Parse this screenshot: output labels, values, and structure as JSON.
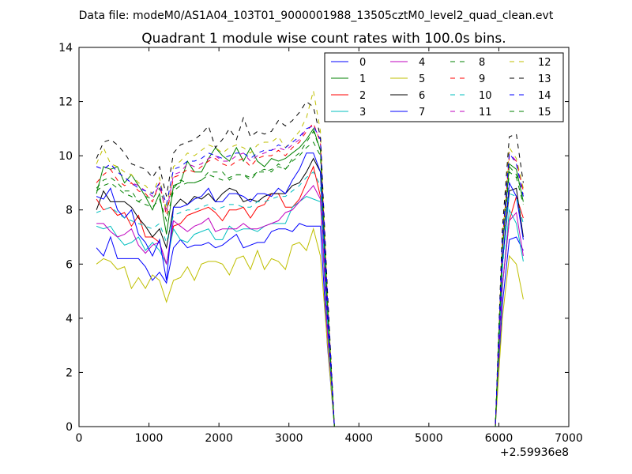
{
  "header": {
    "datafile": "Data file: modeM0/AS1A04_103T01_9000001988_13505cztM0_level2_quad_clean.evt"
  },
  "chart_data": {
    "type": "line",
    "title": "Quadrant 1 module wise count rates with 100.0s bins.",
    "xlabel": "",
    "ylabel": "",
    "xlim": [
      0,
      7000
    ],
    "ylim": [
      0,
      14
    ],
    "x_offset_label": "+2.59936e8",
    "xticks": [
      0,
      1000,
      2000,
      3000,
      4000,
      5000,
      6000,
      7000
    ],
    "yticks": [
      0,
      2,
      4,
      6,
      8,
      10,
      12,
      14
    ],
    "xtick_labels": [
      "0",
      "1000",
      "2000",
      "3000",
      "4000",
      "5000",
      "6000",
      "7000"
    ],
    "ytick_labels": [
      "0",
      "2",
      "4",
      "6",
      "8",
      "10",
      "12",
      "14"
    ],
    "grid": false,
    "legend_position": "top-right",
    "legend_columns": 4,
    "x": [
      250,
      350,
      450,
      550,
      650,
      750,
      850,
      950,
      1050,
      1150,
      1250,
      1350,
      1450,
      1550,
      1650,
      1750,
      1850,
      1950,
      2050,
      2150,
      2250,
      2350,
      2450,
      2550,
      2650,
      2750,
      2850,
      2950,
      3050,
      3150,
      3250,
      3350,
      3450,
      3550,
      3650,
      3750,
      3850,
      3950,
      4050,
      4150,
      4250,
      4350,
      4450,
      4550,
      4650,
      4750,
      4850,
      4950,
      5050,
      5150,
      5250,
      5350,
      5450,
      5550,
      5650,
      5750,
      5850,
      5950,
      6050,
      6150,
      6250,
      6350
    ],
    "series": [
      {
        "name": "0",
        "color": "#0000ff",
        "dash": "solid",
        "values": [
          6.6,
          6.3,
          7.0,
          6.2,
          6.2,
          6.2,
          6.2,
          5.9,
          5.4,
          5.7,
          5.3,
          6.6,
          6.9,
          6.6,
          6.7,
          6.7,
          6.8,
          6.6,
          6.7,
          6.9,
          7.1,
          6.6,
          6.7,
          6.8,
          6.8,
          7.2,
          7.3,
          7.3,
          7.2,
          7.5,
          7.4,
          7.4,
          7.4,
          3.0,
          0,
          0,
          0,
          0,
          0,
          0,
          0,
          0,
          0,
          0,
          0,
          0,
          0,
          0,
          0,
          0,
          0,
          0,
          0,
          0,
          0,
          0,
          0,
          0,
          4.5,
          6.9,
          7.0,
          6.5
        ]
      },
      {
        "name": "1",
        "color": "#008000",
        "dash": "solid",
        "values": [
          8.6,
          9.6,
          9.5,
          9.6,
          9.0,
          9.3,
          8.9,
          8.5,
          8.0,
          8.6,
          7.1,
          8.9,
          9.0,
          9.8,
          9.4,
          9.4,
          9.9,
          10.3,
          10.0,
          9.8,
          10.3,
          9.8,
          10.3,
          9.8,
          9.6,
          9.9,
          9.8,
          9.9,
          10.1,
          10.3,
          10.6,
          11.0,
          10.2,
          4.5,
          0,
          0,
          0,
          0,
          0,
          0,
          0,
          0,
          0,
          0,
          0,
          0,
          0,
          0,
          0,
          0,
          0,
          0,
          0,
          0,
          0,
          0,
          0,
          0,
          6.5,
          9.7,
          9.5,
          8.3
        ]
      },
      {
        "name": "2",
        "color": "#ff0000",
        "dash": "solid",
        "values": [
          8.4,
          8.0,
          8.1,
          7.8,
          7.9,
          7.4,
          7.8,
          7.0,
          7.0,
          6.8,
          6.0,
          7.4,
          7.5,
          7.8,
          7.9,
          8.0,
          8.1,
          7.9,
          7.6,
          8.0,
          8.0,
          8.1,
          7.7,
          8.1,
          8.2,
          8.6,
          8.6,
          8.1,
          8.1,
          8.4,
          9.0,
          9.6,
          8.5,
          3.6,
          0,
          0,
          0,
          0,
          0,
          0,
          0,
          0,
          0,
          0,
          0,
          0,
          0,
          0,
          0,
          0,
          0,
          0,
          0,
          0,
          0,
          0,
          0,
          0,
          5.2,
          7.6,
          8.5,
          7.7
        ]
      },
      {
        "name": "3",
        "color": "#00bfbf",
        "dash": "solid",
        "values": [
          7.4,
          7.3,
          7.4,
          7.0,
          6.7,
          6.8,
          7.0,
          6.5,
          6.8,
          6.5,
          6.0,
          7.3,
          6.9,
          6.8,
          7.1,
          7.2,
          7.3,
          6.9,
          6.9,
          7.4,
          7.2,
          7.3,
          7.3,
          7.2,
          7.4,
          7.5,
          7.5,
          7.5,
          8.1,
          8.3,
          8.5,
          8.4,
          8.3,
          3.5,
          0,
          0,
          0,
          0,
          0,
          0,
          0,
          0,
          0,
          0,
          0,
          0,
          0,
          0,
          0,
          0,
          0,
          0,
          0,
          0,
          0,
          0,
          0,
          0,
          5.1,
          8.0,
          7.5,
          6.1
        ]
      },
      {
        "name": "4",
        "color": "#bf00bf",
        "dash": "solid",
        "values": [
          7.5,
          7.5,
          7.2,
          7.0,
          7.1,
          7.3,
          6.7,
          6.4,
          6.7,
          6.8,
          6.0,
          7.6,
          7.4,
          7.2,
          7.4,
          7.5,
          7.7,
          7.2,
          7.3,
          7.3,
          7.3,
          7.5,
          7.3,
          7.3,
          7.4,
          7.5,
          7.6,
          7.9,
          8.0,
          8.3,
          8.6,
          8.9,
          8.4,
          3.5,
          0,
          0,
          0,
          0,
          0,
          0,
          0,
          0,
          0,
          0,
          0,
          0,
          0,
          0,
          0,
          0,
          0,
          0,
          0,
          0,
          0,
          0,
          0,
          0,
          5.2,
          7.6,
          7.9,
          6.3
        ]
      },
      {
        "name": "5",
        "color": "#bfbf00",
        "dash": "solid",
        "values": [
          6.0,
          6.2,
          6.1,
          5.8,
          5.9,
          5.1,
          5.5,
          5.1,
          5.6,
          5.4,
          4.6,
          5.4,
          5.5,
          5.9,
          5.4,
          6.0,
          6.1,
          6.1,
          6.0,
          5.6,
          6.2,
          6.3,
          5.8,
          6.5,
          5.8,
          6.2,
          6.1,
          5.8,
          6.7,
          6.8,
          6.5,
          7.3,
          6.3,
          3.1,
          0,
          0,
          0,
          0,
          0,
          0,
          0,
          0,
          0,
          0,
          0,
          0,
          0,
          0,
          0,
          0,
          0,
          0,
          0,
          0,
          0,
          0,
          0,
          0,
          4.0,
          6.3,
          6.0,
          4.7
        ]
      },
      {
        "name": "6",
        "color": "#000000",
        "dash": "solid",
        "values": [
          8.0,
          8.7,
          8.3,
          8.3,
          8.3,
          8.1,
          7.7,
          7.4,
          7.0,
          7.3,
          6.6,
          8.1,
          8.4,
          8.2,
          8.5,
          8.4,
          8.6,
          8.3,
          8.6,
          8.8,
          8.7,
          8.3,
          8.4,
          8.3,
          8.5,
          8.6,
          8.6,
          8.6,
          8.9,
          9.0,
          9.4,
          9.9,
          9.4,
          4.1,
          0,
          0,
          0,
          0,
          0,
          0,
          0,
          0,
          0,
          0,
          0,
          0,
          0,
          0,
          0,
          0,
          0,
          0,
          0,
          0,
          0,
          0,
          0,
          0,
          6.0,
          8.7,
          8.8,
          7.0
        ]
      },
      {
        "name": "7",
        "color": "#0000ff",
        "dash": "solid",
        "values": [
          8.5,
          8.4,
          8.8,
          8.0,
          7.7,
          8.0,
          7.1,
          6.8,
          6.3,
          6.9,
          5.4,
          8.1,
          8.1,
          8.2,
          8.4,
          8.5,
          8.8,
          8.3,
          8.3,
          8.6,
          8.6,
          8.5,
          8.3,
          8.6,
          8.6,
          8.5,
          8.8,
          8.6,
          9.1,
          9.5,
          10.1,
          10.1,
          9.4,
          4.0,
          0,
          0,
          0,
          0,
          0,
          0,
          0,
          0,
          0,
          0,
          0,
          0,
          0,
          0,
          0,
          0,
          0,
          0,
          0,
          0,
          0,
          0,
          0,
          0,
          6.0,
          9.0,
          8.5,
          6.9
        ]
      },
      {
        "name": "8",
        "color": "#008000",
        "dash": "dashed",
        "values": [
          8.8,
          9.1,
          9.2,
          9.0,
          8.7,
          8.7,
          8.3,
          8.5,
          8.4,
          8.8,
          8.0,
          8.8,
          9.1,
          9.0,
          9.0,
          9.1,
          9.4,
          9.4,
          9.4,
          9.1,
          9.3,
          9.3,
          9.2,
          9.4,
          9.5,
          9.4,
          9.7,
          9.5,
          9.9,
          10.1,
          10.5,
          10.9,
          10.2,
          4.6,
          0,
          0,
          0,
          0,
          0,
          0,
          0,
          0,
          0,
          0,
          0,
          0,
          0,
          0,
          0,
          0,
          0,
          0,
          0,
          0,
          0,
          0,
          0,
          0,
          6.6,
          9.6,
          9.3,
          8.5
        ]
      },
      {
        "name": "9",
        "color": "#ff0000",
        "dash": "dashed",
        "values": [
          9.0,
          9.3,
          9.5,
          9.1,
          8.9,
          9.0,
          8.7,
          8.6,
          8.3,
          9.0,
          7.8,
          9.2,
          9.3,
          9.5,
          9.4,
          9.6,
          9.8,
          9.9,
          9.7,
          9.6,
          9.8,
          9.9,
          9.6,
          9.9,
          10.0,
          10.0,
          10.2,
          10.0,
          10.3,
          10.5,
          10.9,
          11.2,
          10.5,
          4.8,
          0,
          0,
          0,
          0,
          0,
          0,
          0,
          0,
          0,
          0,
          0,
          0,
          0,
          0,
          0,
          0,
          0,
          0,
          0,
          0,
          0,
          0,
          0,
          0,
          6.8,
          10.0,
          9.8,
          8.7
        ]
      },
      {
        "name": "10",
        "color": "#00bfbf",
        "dash": "dashed",
        "values": [
          7.9,
          8.0,
          8.1,
          7.9,
          7.7,
          7.6,
          7.5,
          7.4,
          7.3,
          7.5,
          6.8,
          7.8,
          7.9,
          8.0,
          8.0,
          8.1,
          8.2,
          8.0,
          8.1,
          8.2,
          8.2,
          8.1,
          8.1,
          8.3,
          8.3,
          8.4,
          8.5,
          8.5,
          8.7,
          8.9,
          9.2,
          9.4,
          8.9,
          4.0,
          0,
          0,
          0,
          0,
          0,
          0,
          0,
          0,
          0,
          0,
          0,
          0,
          0,
          0,
          0,
          0,
          0,
          0,
          0,
          0,
          0,
          0,
          0,
          0,
          5.8,
          8.6,
          8.5,
          7.5
        ]
      },
      {
        "name": "11",
        "color": "#bf00bf",
        "dash": "dashed",
        "values": [
          9.6,
          9.5,
          9.7,
          9.4,
          9.2,
          9.0,
          8.9,
          8.7,
          8.5,
          8.9,
          7.9,
          9.3,
          9.4,
          9.7,
          9.6,
          9.7,
          9.9,
          10.0,
          9.8,
          9.8,
          10.0,
          10.1,
          9.8,
          10.0,
          10.1,
          10.2,
          10.3,
          10.2,
          10.4,
          10.6,
          11.0,
          11.1,
          10.6,
          4.8,
          0,
          0,
          0,
          0,
          0,
          0,
          0,
          0,
          0,
          0,
          0,
          0,
          0,
          0,
          0,
          0,
          0,
          0,
          0,
          0,
          0,
          0,
          0,
          0,
          6.9,
          10.1,
          9.8,
          8.6
        ]
      },
      {
        "name": "12",
        "color": "#bfbf00",
        "dash": "dashed",
        "values": [
          9.7,
          10.3,
          9.7,
          9.6,
          9.4,
          9.3,
          9.0,
          8.9,
          8.6,
          9.2,
          8.0,
          9.6,
          9.8,
          10.1,
          10.0,
          10.2,
          10.4,
          10.3,
          10.1,
          10.3,
          10.4,
          10.3,
          10.1,
          10.4,
          10.5,
          10.5,
          10.7,
          10.3,
          10.6,
          10.9,
          11.4,
          12.4,
          10.9,
          5.0,
          0,
          0,
          0,
          0,
          0,
          0,
          0,
          0,
          0,
          0,
          0,
          0,
          0,
          0,
          0,
          0,
          0,
          0,
          0,
          0,
          0,
          0,
          0,
          0,
          7.1,
          10.3,
          9.9,
          8.8
        ]
      },
      {
        "name": "13",
        "color": "#000000",
        "dash": "dashed",
        "values": [
          9.9,
          10.5,
          10.6,
          10.4,
          10.1,
          9.7,
          9.6,
          9.5,
          9.2,
          9.6,
          8.5,
          10.1,
          10.4,
          10.5,
          10.6,
          10.8,
          11.1,
          10.3,
          10.6,
          11.0,
          10.6,
          11.4,
          10.7,
          10.9,
          10.8,
          10.9,
          11.3,
          11.1,
          11.3,
          11.6,
          12.0,
          11.8,
          10.7,
          5.1,
          0,
          0,
          0,
          0,
          0,
          0,
          0,
          0,
          0,
          0,
          0,
          0,
          0,
          0,
          0,
          0,
          0,
          0,
          0,
          0,
          0,
          0,
          0,
          0,
          7.3,
          10.7,
          10.8,
          9.0
        ]
      },
      {
        "name": "14",
        "color": "#0000ff",
        "dash": "dashed",
        "values": [
          9.6,
          9.5,
          9.7,
          9.4,
          9.2,
          9.0,
          8.8,
          8.7,
          8.6,
          9.0,
          8.2,
          9.5,
          9.6,
          9.8,
          9.8,
          9.9,
          10.1,
          10.0,
          9.9,
          10.0,
          10.1,
          10.1,
          9.9,
          10.1,
          10.2,
          10.2,
          10.4,
          10.3,
          10.5,
          10.7,
          11.0,
          11.1,
          10.6,
          4.8,
          0,
          0,
          0,
          0,
          0,
          0,
          0,
          0,
          0,
          0,
          0,
          0,
          0,
          0,
          0,
          0,
          0,
          0,
          0,
          0,
          0,
          0,
          0,
          0,
          6.9,
          10.1,
          9.7,
          8.5
        ]
      },
      {
        "name": "15",
        "color": "#008000",
        "dash": "dashed",
        "values": [
          8.7,
          8.9,
          9.0,
          8.8,
          8.6,
          8.5,
          8.3,
          8.2,
          8.1,
          8.4,
          7.6,
          8.7,
          8.9,
          9.0,
          9.0,
          9.1,
          9.3,
          9.2,
          9.1,
          9.2,
          9.3,
          9.3,
          9.1,
          9.4,
          9.4,
          9.5,
          9.6,
          9.5,
          9.8,
          10.0,
          10.3,
          10.5,
          10.0,
          4.5,
          0,
          0,
          0,
          0,
          0,
          0,
          0,
          0,
          0,
          0,
          0,
          0,
          0,
          0,
          0,
          0,
          0,
          0,
          0,
          0,
          0,
          0,
          0,
          0,
          6.5,
          9.4,
          9.2,
          8.2
        ]
      }
    ]
  }
}
